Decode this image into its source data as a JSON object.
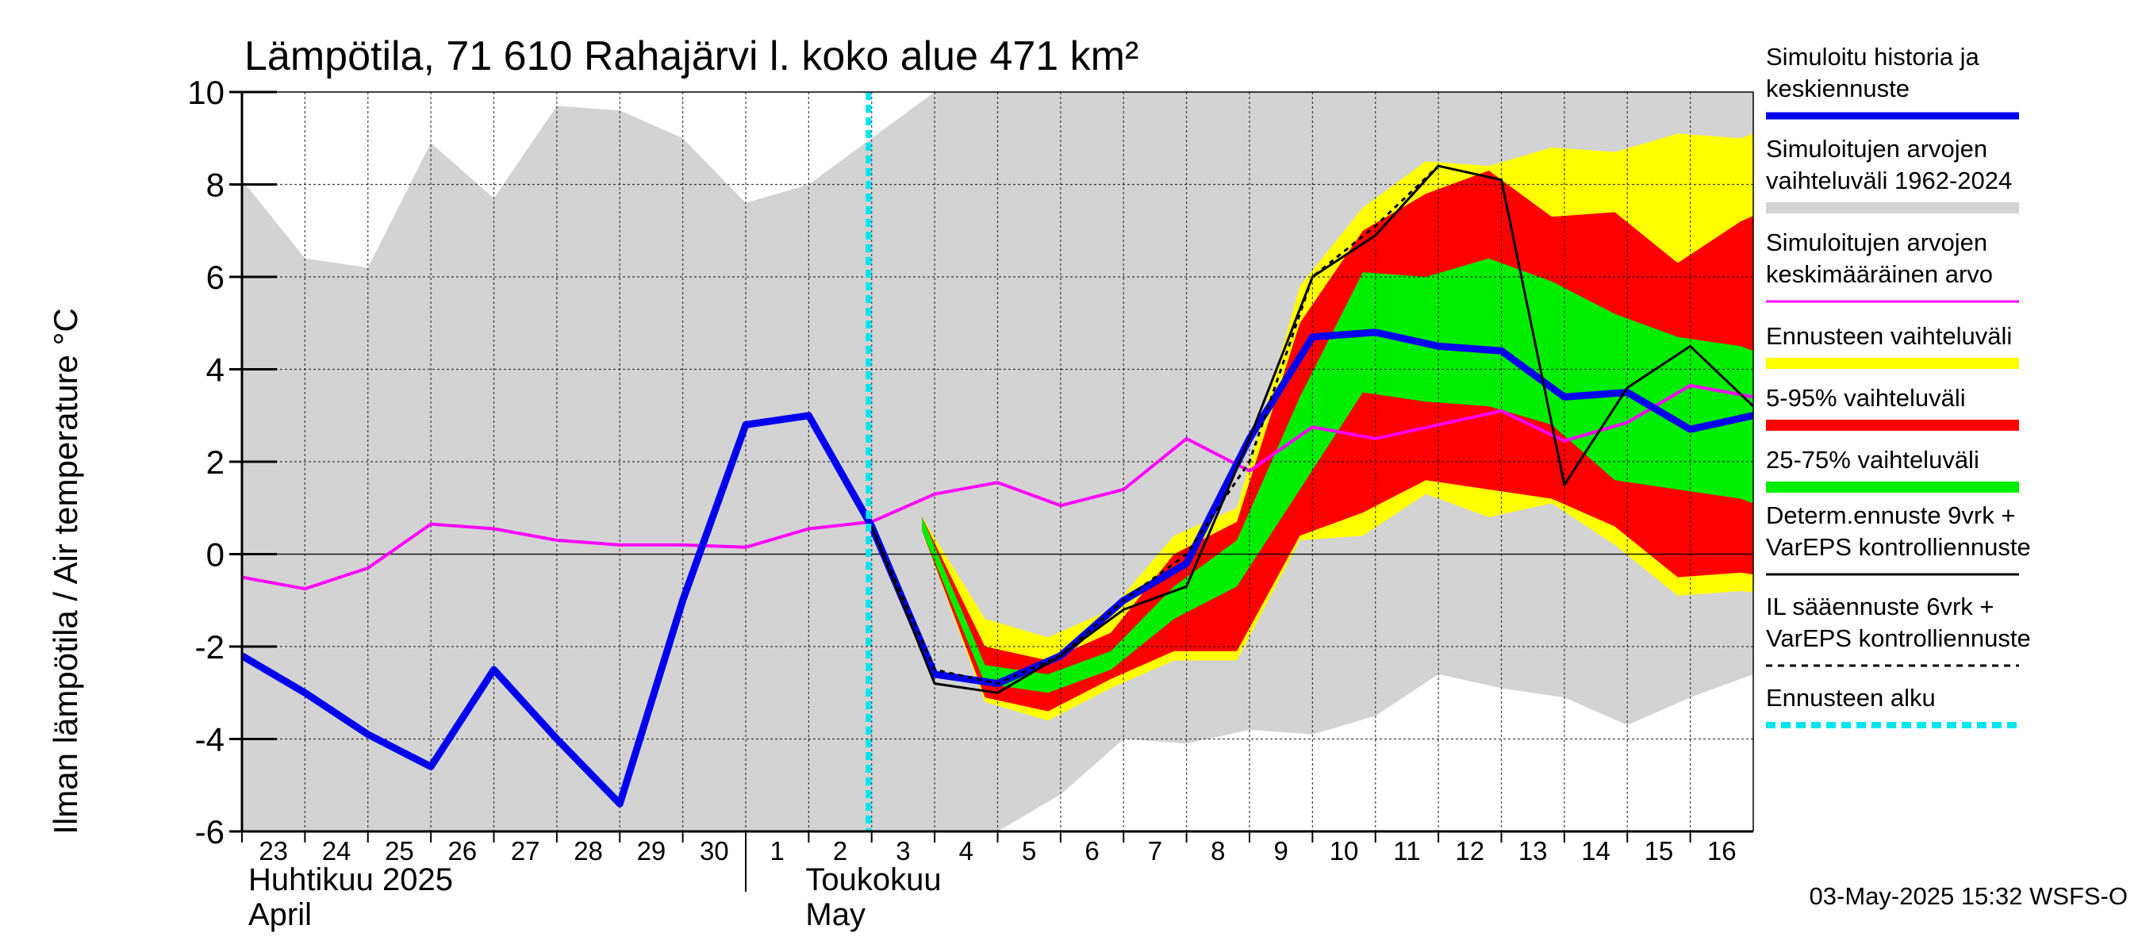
{
  "chart_data": {
    "type": "area",
    "title": "Lämpötila, 71 610 Rahajärvi l. koko alue 471 km²",
    "ylabel": "Ilman lämpötila / Air temperature    °C",
    "ylim": [
      -6,
      10
    ],
    "yticks": [
      -6,
      -4,
      -2,
      0,
      2,
      4,
      6,
      8,
      10
    ],
    "grid": true,
    "legend_position": "right",
    "x_tick_labels": [
      "23",
      "24",
      "25",
      "26",
      "27",
      "28",
      "29",
      "30",
      "1",
      "2",
      "3",
      "4",
      "5",
      "6",
      "7",
      "8",
      "9",
      "10",
      "11",
      "12",
      "13",
      "14",
      "15",
      "16"
    ],
    "months": [
      {
        "line1": "Huhtikuu  2025",
        "line2": "April"
      },
      {
        "line1": "Toukokuu",
        "line2": "May"
      }
    ],
    "forecast_start": "2025-05-03",
    "series": {
      "history_range": {
        "name": "Simuloitujen arvojen vaihteluväli 1962-2024",
        "color": "#d3d3d3",
        "x": [
          -0.5,
          0.5,
          1.5,
          2.5,
          3.5,
          4.5,
          5.5,
          6.5,
          7.5,
          8.5,
          9.5,
          10.5,
          11.5,
          12.5,
          13.5,
          14.5,
          15.5,
          16.5,
          17.5,
          18.5,
          19.5,
          20.5,
          21.5,
          22.5,
          23.5
        ],
        "upper": [
          8.1,
          6.4,
          6.2,
          8.9,
          7.7,
          9.7,
          9.6,
          9.0,
          7.6,
          8.0,
          9.0,
          10.0,
          10.0,
          10.0,
          10.0,
          10.0,
          10.0,
          10.0,
          10.0,
          10.0,
          10.0,
          10.0,
          10.0,
          10.0,
          10.0
        ],
        "lower": [
          -6.0,
          -6.0,
          -6.0,
          -6.0,
          -6.0,
          -6.0,
          -6.0,
          -6.0,
          -6.0,
          -6.0,
          -6.0,
          -6.0,
          -6.0,
          -5.2,
          -4.0,
          -4.1,
          -3.8,
          -3.9,
          -3.5,
          -2.6,
          -2.9,
          -3.1,
          -3.7,
          -3.1,
          -2.6
        ]
      },
      "forecast_range": {
        "name": "Ennusteen vaihteluväli",
        "color": "#ffff00",
        "x": [
          10.3,
          11.3,
          12.3,
          13.3,
          14.3,
          15.3,
          16.3,
          17.3,
          18.3,
          19.3,
          20.3,
          21.3,
          22.3,
          23.3,
          24.3
        ],
        "upper": [
          0.8,
          -1.4,
          -1.8,
          -1.2,
          0.4,
          1.0,
          5.8,
          7.5,
          8.5,
          8.4,
          8.8,
          8.7,
          9.1,
          9.0,
          9.5
        ],
        "lower": [
          0.5,
          -3.2,
          -3.6,
          -2.9,
          -2.3,
          -2.3,
          0.3,
          0.4,
          1.3,
          0.8,
          1.1,
          0.2,
          -0.9,
          -0.8,
          -0.9
        ]
      },
      "p5_95_range": {
        "name": "5-95% vaihteluväli",
        "color": "#ff0000",
        "x": [
          10.3,
          11.3,
          12.3,
          13.3,
          14.3,
          15.3,
          16.3,
          17.3,
          18.3,
          19.3,
          20.3,
          21.3,
          22.3,
          23.3,
          24.3
        ],
        "upper": [
          0.8,
          -2.0,
          -2.3,
          -1.7,
          0.0,
          0.7,
          5.0,
          7.0,
          7.8,
          8.3,
          7.3,
          7.4,
          6.3,
          7.2,
          7.8
        ],
        "lower": [
          0.5,
          -3.1,
          -3.4,
          -2.7,
          -2.1,
          -2.1,
          0.4,
          0.9,
          1.6,
          1.4,
          1.2,
          0.6,
          -0.5,
          -0.4,
          -0.6
        ]
      },
      "p25_75_range": {
        "name": "25-75% vaihteluväli",
        "color": "#00ee00",
        "x": [
          10.3,
          11.3,
          12.3,
          13.3,
          14.3,
          15.3,
          16.3,
          17.3,
          18.3,
          19.3,
          20.3,
          21.3,
          22.3,
          23.3,
          24.3
        ],
        "upper": [
          0.8,
          -2.4,
          -2.6,
          -2.1,
          -0.7,
          0.3,
          3.4,
          6.1,
          6.0,
          6.4,
          5.9,
          5.2,
          4.7,
          4.5,
          4.0
        ],
        "lower": [
          0.5,
          -2.8,
          -3.0,
          -2.5,
          -1.4,
          -0.7,
          1.4,
          3.5,
          3.3,
          3.2,
          2.8,
          1.6,
          1.4,
          1.2,
          0.7
        ]
      },
      "mean": {
        "name": "Simuloitujen arvojen keskimääräinen arvo",
        "color": "#ff00ff",
        "x": [
          -0.5,
          0.5,
          1.5,
          2.5,
          3.5,
          4.5,
          5.5,
          6.5,
          7.5,
          8.5,
          9.5,
          10.5,
          11.5,
          12.5,
          13.5,
          14.5,
          15.5,
          16.5,
          17.5,
          18.5,
          19.5,
          20.5,
          21.5,
          22.5,
          23.5
        ],
        "y": [
          -0.5,
          -0.75,
          -0.3,
          0.65,
          0.55,
          0.3,
          0.2,
          0.2,
          0.15,
          0.55,
          0.7,
          1.3,
          1.55,
          1.05,
          1.4,
          2.5,
          1.8,
          2.75,
          2.5,
          2.8,
          3.1,
          2.45,
          2.85,
          3.65,
          3.4
        ]
      },
      "history_and_median": {
        "name": "Simuloitu historia ja keskiennuste",
        "color": "#0000ee",
        "x": [
          -0.5,
          0.5,
          1.5,
          2.5,
          3.5,
          4.5,
          5.5,
          6.5,
          7.5,
          8.5,
          9.5,
          10.5,
          11.5,
          12.5,
          13.5,
          14.5,
          15.5,
          16.5,
          17.5,
          18.5,
          19.5,
          20.5,
          21.5,
          22.5,
          23.5,
          24.5
        ],
        "y": [
          -2.2,
          -3.0,
          -3.9,
          -4.6,
          -2.5,
          -4.0,
          -5.4,
          -1.0,
          2.8,
          3.0,
          0.6,
          -2.6,
          -2.8,
          -2.2,
          -1.0,
          -0.2,
          2.5,
          4.7,
          4.8,
          4.5,
          4.4,
          3.4,
          3.5,
          2.7,
          3.0,
          3.6
        ]
      },
      "deterministic": {
        "name": "Determ.ennuste 9vrk + VarEPS kontrolliennuste",
        "color": "#000000",
        "x": [
          9.5,
          10.5,
          11.5,
          12.5,
          13.5,
          14.5,
          15.5,
          16.5,
          17.5,
          18.5,
          19.5,
          20.5,
          21.5,
          22.5,
          23.5
        ],
        "y": [
          0.6,
          -2.8,
          -3.0,
          -2.2,
          -1.2,
          -0.7,
          2.5,
          6.0,
          6.9,
          8.4,
          8.1,
          1.5,
          3.6,
          4.5,
          3.2
        ]
      },
      "il_forecast": {
        "name": "IL sääennuste 6vrk + VarEPS kontrolliennuste",
        "color": "#000000",
        "dash": "dashed",
        "x": [
          9.5,
          10.5,
          11.5,
          12.5,
          13.5,
          14.5,
          15.5,
          16.5,
          17.5,
          18.5
        ],
        "y": [
          0.6,
          -2.5,
          -2.8,
          -2.2,
          -1.0,
          0.0,
          2.0,
          6.0,
          7.1,
          8.4
        ]
      }
    },
    "legend": [
      {
        "key": "history_and_median",
        "lines": [
          "Simuloitu historia ja",
          "keskiennuste"
        ],
        "color": "#0000ee",
        "style": "thick"
      },
      {
        "key": "history_range",
        "lines": [
          "Simuloitujen arvojen",
          "vaihteluväli 1962-2024"
        ],
        "color": "#d3d3d3",
        "style": "band"
      },
      {
        "key": "mean",
        "lines": [
          "Simuloitujen arvojen",
          "keskimääräinen arvo"
        ],
        "color": "#ff00ff",
        "style": "thin"
      },
      {
        "key": "forecast_range",
        "lines": [
          "Ennusteen vaihteluväli"
        ],
        "color": "#ffff00",
        "style": "band"
      },
      {
        "key": "p5_95_range",
        "lines": [
          "5-95% vaihteluväli"
        ],
        "color": "#ff0000",
        "style": "band"
      },
      {
        "key": "p25_75_range",
        "lines": [
          "25-75% vaihteluväli"
        ],
        "color": "#00ee00",
        "style": "band"
      },
      {
        "key": "deterministic",
        "lines": [
          "Determ.ennuste 9vrk +",
          "VarEPS kontrolliennuste"
        ],
        "color": "#000000",
        "style": "thin"
      },
      {
        "key": "il_forecast",
        "lines": [
          "IL sääennuste 6vrk  +",
          "  VarEPS kontrolliennuste"
        ],
        "color": "#000000",
        "style": "dashed"
      },
      {
        "key": "forecast_start",
        "lines": [
          "Ennusteen alku"
        ],
        "color": "#00e5ee",
        "style": "dotted"
      }
    ],
    "forecast_start_color": "#00e5ee",
    "footer": "03-May-2025 15:32 WSFS-O"
  }
}
